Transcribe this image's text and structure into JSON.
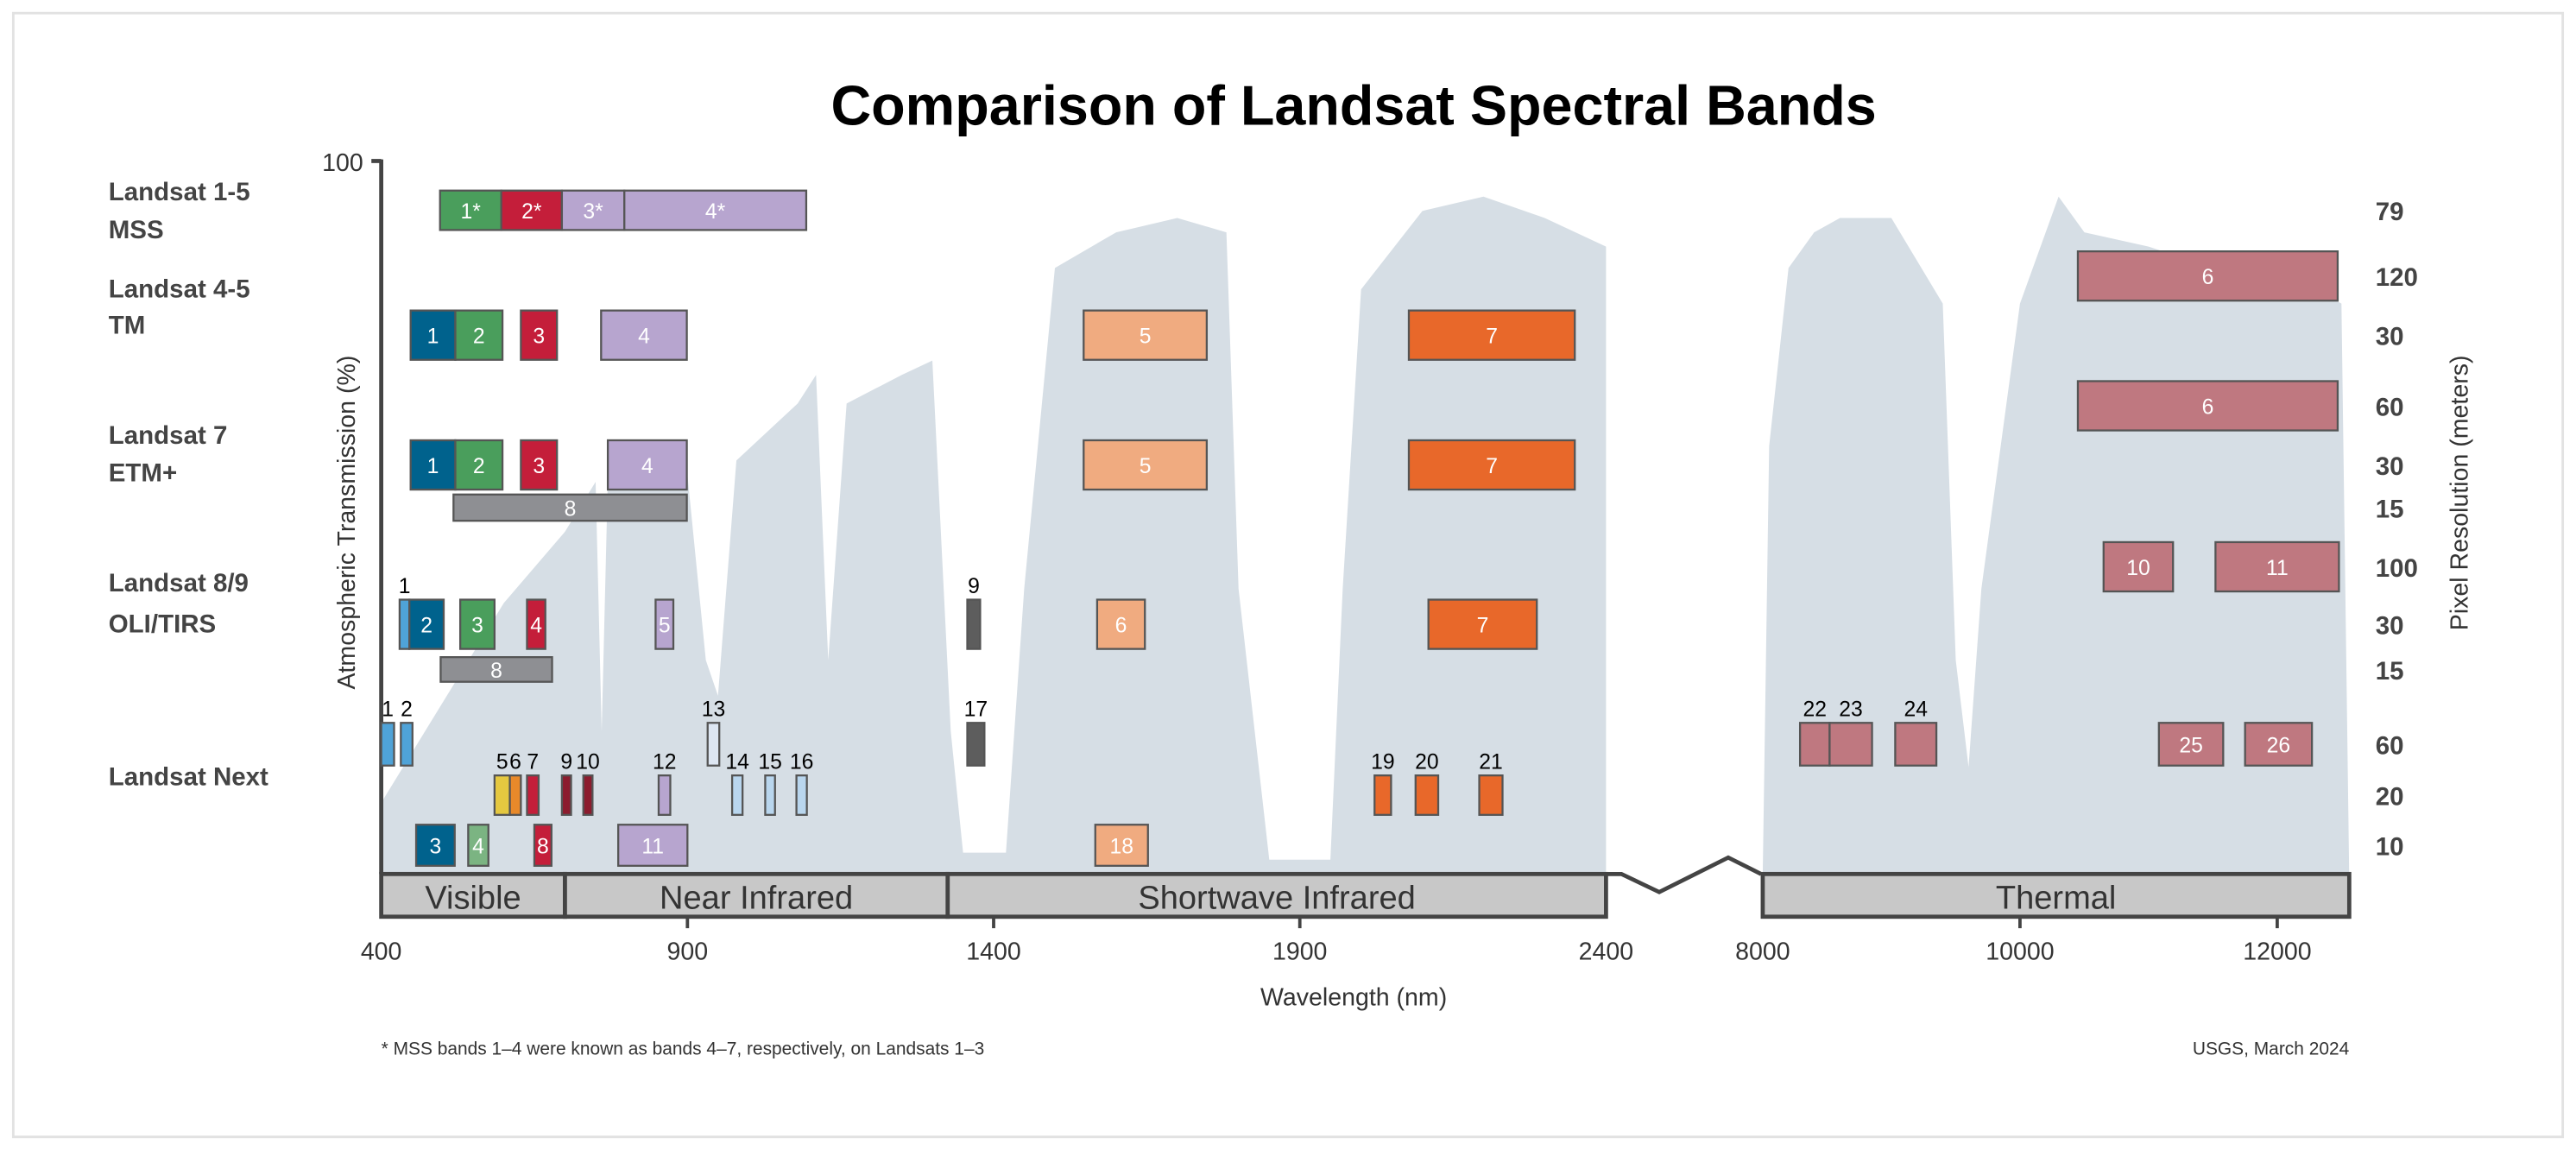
{
  "chart_data": {
    "type": "bar",
    "title": "Comparison of Landsat Spectral Bands",
    "ylabel": "Atmospheric Transmission (%)",
    "ylabel_right": "Pixel Resolution (meters)",
    "xlabel": "Wavelength (nm)",
    "y_tick": "100",
    "ylim": [
      0,
      100
    ],
    "x_ticks_reflective": [
      "400",
      "900",
      "1400",
      "1900",
      "2400"
    ],
    "x_ticks_thermal": [
      "8000",
      "10000",
      "12000"
    ],
    "xlim_reflective": [
      400,
      2400
    ],
    "xlim_thermal": [
      8000,
      12560
    ],
    "footnote": "* MSS bands 1–4 were known as bands 4–7, respectively, on Landsats 1–3",
    "credit": "USGS, March 2024",
    "regions": [
      {
        "label": "Visible",
        "start": 400,
        "end": 700
      },
      {
        "label": "Near Infrared",
        "start": 700,
        "end": 1325
      },
      {
        "label": "Shortwave Infrared",
        "start": 1325,
        "end": 2400
      },
      {
        "label": "Thermal",
        "start": 8000,
        "end": 12560
      }
    ],
    "transmission_color": "#d6dee5",
    "transmission": [
      [
        400,
        10
      ],
      [
        500,
        24
      ],
      [
        600,
        38
      ],
      [
        700,
        48
      ],
      [
        750,
        55
      ],
      [
        760,
        20
      ],
      [
        770,
        55
      ],
      [
        900,
        56
      ],
      [
        930,
        30
      ],
      [
        950,
        25
      ],
      [
        980,
        58
      ],
      [
        1080,
        66
      ],
      [
        1110,
        70
      ],
      [
        1130,
        30
      ],
      [
        1160,
        66
      ],
      [
        1250,
        70
      ],
      [
        1300,
        72
      ],
      [
        1330,
        20
      ],
      [
        1350,
        3
      ],
      [
        1420,
        3
      ],
      [
        1450,
        40
      ],
      [
        1500,
        85
      ],
      [
        1600,
        90
      ],
      [
        1700,
        92
      ],
      [
        1780,
        90
      ],
      [
        1800,
        40
      ],
      [
        1850,
        2
      ],
      [
        1950,
        2
      ],
      [
        1970,
        40
      ],
      [
        2000,
        82
      ],
      [
        2100,
        93
      ],
      [
        2200,
        95
      ],
      [
        2300,
        92
      ],
      [
        2400,
        88
      ],
      [
        8000,
        0
      ],
      [
        8050,
        60
      ],
      [
        8200,
        85
      ],
      [
        8400,
        90
      ],
      [
        8600,
        92
      ],
      [
        9000,
        92
      ],
      [
        9400,
        80
      ],
      [
        9500,
        30
      ],
      [
        9600,
        15
      ],
      [
        9700,
        40
      ],
      [
        10000,
        80
      ],
      [
        10300,
        95
      ],
      [
        10500,
        90
      ],
      [
        11000,
        88
      ],
      [
        11500,
        85
      ],
      [
        12000,
        85
      ],
      [
        12500,
        80
      ],
      [
        12560,
        0
      ]
    ],
    "sensors": [
      {
        "name": "Landsat 1-5",
        "instrument": "MSS",
        "resolutions": [
          "79"
        ],
        "bands": [
          {
            "label": "1*",
            "start": 496,
            "end": 596,
            "res": 0,
            "color": "#4a9e5c"
          },
          {
            "label": "2*",
            "start": 596,
            "end": 695,
            "res": 0,
            "color": "#c41e3a"
          },
          {
            "label": "3*",
            "start": 695,
            "end": 797,
            "res": 0,
            "color": "#b7a5cf"
          },
          {
            "label": "4*",
            "start": 797,
            "end": 1094,
            "res": 0,
            "color": "#b7a5cf"
          }
        ]
      },
      {
        "name": "Landsat 4-5",
        "instrument": "TM",
        "resolutions": [
          "120",
          "30"
        ],
        "bands": [
          {
            "label": "1",
            "start": 448,
            "end": 521,
            "res": 1,
            "color": "#00628d"
          },
          {
            "label": "2",
            "start": 521,
            "end": 598,
            "res": 1,
            "color": "#4a9e5c"
          },
          {
            "label": "3",
            "start": 628,
            "end": 687,
            "res": 1,
            "color": "#c41e3a"
          },
          {
            "label": "4",
            "start": 759,
            "end": 899,
            "res": 1,
            "color": "#b7a5cf"
          },
          {
            "label": "5",
            "start": 1547,
            "end": 1748,
            "res": 1,
            "color": "#f0ab80"
          },
          {
            "label": "7",
            "start": 2078,
            "end": 2349,
            "res": 1,
            "color": "#e8682a"
          },
          {
            "label": "6",
            "start": 10450,
            "end": 12470,
            "res": 0,
            "color": "#bf7880"
          }
        ]
      },
      {
        "name": "Landsat 7",
        "instrument": "ETM+",
        "resolutions": [
          "60",
          "30",
          "15"
        ],
        "bands": [
          {
            "label": "1",
            "start": 448,
            "end": 521,
            "res": 1,
            "color": "#00628d"
          },
          {
            "label": "2",
            "start": 521,
            "end": 598,
            "res": 1,
            "color": "#4a9e5c"
          },
          {
            "label": "3",
            "start": 628,
            "end": 687,
            "res": 1,
            "color": "#c41e3a"
          },
          {
            "label": "4",
            "start": 770,
            "end": 899,
            "res": 1,
            "color": "#b7a5cf"
          },
          {
            "label": "5",
            "start": 1547,
            "end": 1748,
            "res": 1,
            "color": "#f0ab80"
          },
          {
            "label": "7",
            "start": 2078,
            "end": 2349,
            "res": 1,
            "color": "#e8682a"
          },
          {
            "label": "6",
            "start": 10450,
            "end": 12470,
            "res": 0,
            "color": "#bf7880"
          },
          {
            "label": "8",
            "start": 518,
            "end": 899,
            "res": 2,
            "color": "#8e8f93"
          }
        ]
      },
      {
        "name": "Landsat 8/9",
        "instrument": "OLI/TIRS",
        "resolutions": [
          "100",
          "30",
          "15"
        ],
        "bands": [
          {
            "label": "1",
            "start": 430,
            "end": 446,
            "res": 1,
            "color": "#4fa3d8",
            "above": true
          },
          {
            "label": "2",
            "start": 446,
            "end": 502,
            "res": 1,
            "color": "#00628d"
          },
          {
            "label": "3",
            "start": 529,
            "end": 585,
            "res": 1,
            "color": "#4a9e5c"
          },
          {
            "label": "4",
            "start": 638,
            "end": 668,
            "res": 1,
            "color": "#c41e3a"
          },
          {
            "label": "5",
            "start": 848,
            "end": 877,
            "res": 1,
            "color": "#b7a5cf"
          },
          {
            "label": "9",
            "start": 1357,
            "end": 1378,
            "res": 1,
            "color": "#5d5d5d",
            "above": true
          },
          {
            "label": "6",
            "start": 1569,
            "end": 1647,
            "res": 1,
            "color": "#f0ab80"
          },
          {
            "label": "7",
            "start": 2110,
            "end": 2287,
            "res": 1,
            "color": "#e8682a"
          },
          {
            "label": "8",
            "start": 497,
            "end": 679,
            "res": 2,
            "color": "#8e8f93"
          },
          {
            "label": "10",
            "start": 10650,
            "end": 11190,
            "res": 0,
            "color": "#bf7880"
          },
          {
            "label": "11",
            "start": 11520,
            "end": 12480,
            "res": 0,
            "color": "#bf7880"
          }
        ]
      },
      {
        "name": "Landsat Next",
        "instrument": "",
        "resolutions": [
          "60",
          "20",
          "10"
        ],
        "bands": [
          {
            "label": "1",
            "start": 400,
            "end": 421,
            "res": 0,
            "color": "#4fa3d8",
            "above": true
          },
          {
            "label": "2",
            "start": 432,
            "end": 451,
            "res": 0,
            "color": "#4fa3d8",
            "above": true
          },
          {
            "label": "13",
            "start": 933,
            "end": 952,
            "res": 0,
            "color": "#dde6f2",
            "above": true
          },
          {
            "label": "17",
            "start": 1357,
            "end": 1385,
            "res": 0,
            "color": "#5d5d5d",
            "above": true
          },
          {
            "label": "22",
            "start": 8290,
            "end": 8520,
            "res": 0,
            "color": "#bf7880",
            "above": true
          },
          {
            "label": "23",
            "start": 8520,
            "end": 8850,
            "res": 0,
            "color": "#bf7880",
            "above": true
          },
          {
            "label": "24",
            "start": 9030,
            "end": 9350,
            "res": 0,
            "color": "#bf7880",
            "above": true
          },
          {
            "label": "25",
            "start": 11080,
            "end": 11580,
            "res": 0,
            "color": "#bf7880"
          },
          {
            "label": "26",
            "start": 11750,
            "end": 12270,
            "res": 0,
            "color": "#bf7880"
          },
          {
            "label": "5",
            "start": 585,
            "end": 610,
            "res": 1,
            "color": "#e5c840",
            "above": true
          },
          {
            "label": "6",
            "start": 610,
            "end": 628,
            "res": 1,
            "color": "#e8892a",
            "above": true
          },
          {
            "label": "7",
            "start": 638,
            "end": 657,
            "res": 1,
            "color": "#c41e3a",
            "above": true
          },
          {
            "label": "9",
            "start": 695,
            "end": 710,
            "res": 1,
            "color": "#8c1c2e",
            "above": true
          },
          {
            "label": "10",
            "start": 730,
            "end": 745,
            "res": 1,
            "color": "#8c1c2e",
            "above": true
          },
          {
            "label": "12",
            "start": 853,
            "end": 872,
            "res": 1,
            "color": "#b7a5cf",
            "above": true
          },
          {
            "label": "14",
            "start": 973,
            "end": 990,
            "res": 1,
            "color": "#b9d6ee",
            "above": true
          },
          {
            "label": "15",
            "start": 1027,
            "end": 1043,
            "res": 1,
            "color": "#b9d6ee",
            "above": true
          },
          {
            "label": "16",
            "start": 1078,
            "end": 1095,
            "res": 1,
            "color": "#b9d6ee",
            "above": true
          },
          {
            "label": "19",
            "start": 2022,
            "end": 2049,
            "res": 1,
            "color": "#e8682a",
            "above": true
          },
          {
            "label": "20",
            "start": 2089,
            "end": 2126,
            "res": 1,
            "color": "#e8682a",
            "above": true
          },
          {
            "label": "21",
            "start": 2193,
            "end": 2231,
            "res": 1,
            "color": "#e8682a",
            "above": true
          },
          {
            "label": "3",
            "start": 457,
            "end": 520,
            "res": 2,
            "color": "#00628d"
          },
          {
            "label": "4",
            "start": 542,
            "end": 575,
            "res": 2,
            "color": "#7bb482"
          },
          {
            "label": "8",
            "start": 650,
            "end": 678,
            "res": 2,
            "color": "#c41e3a"
          },
          {
            "label": "11",
            "start": 787,
            "end": 900,
            "res": 2,
            "color": "#b7a5cf"
          },
          {
            "label": "18",
            "start": 1566,
            "end": 1652,
            "res": 2,
            "color": "#f0ab80"
          }
        ]
      }
    ]
  }
}
